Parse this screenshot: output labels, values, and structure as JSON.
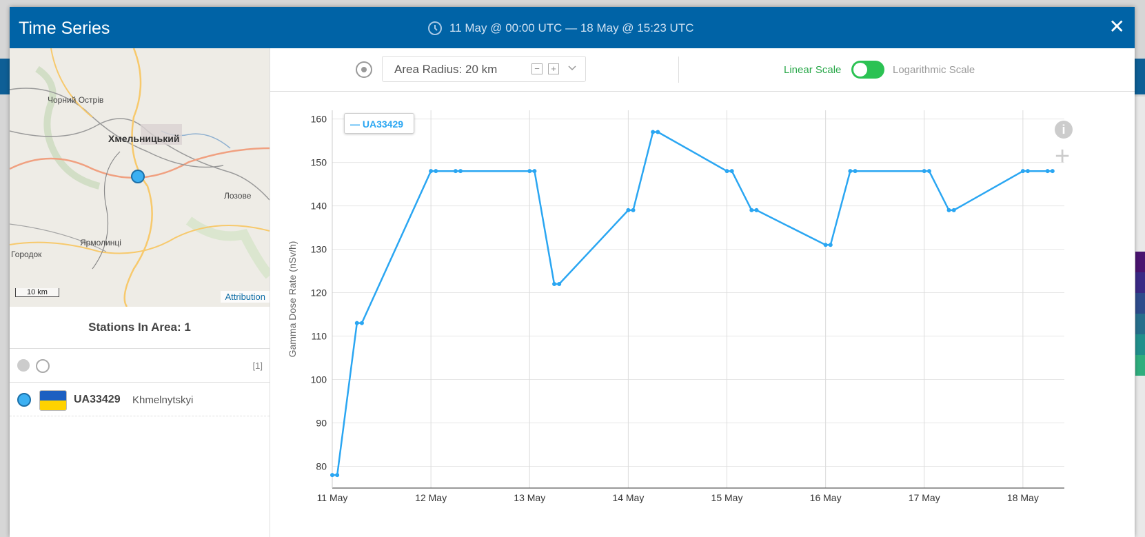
{
  "dialog": {
    "title": "Time Series",
    "range_icon": "clock-icon",
    "range": "11 May @ 00:00 UTC — 18 May @ 15:23 UTC",
    "close_icon": "close-icon",
    "close_label": "✕"
  },
  "map": {
    "labels": {
      "label_1": "Чорний Острів",
      "label_2": "Хмельницький",
      "label_3": "Лозове",
      "label_4": "Ярмолинці",
      "label_5": "Городок"
    },
    "scale": "10 km",
    "attribution": "Attribution"
  },
  "stations": {
    "heading": "Stations In Area: 1",
    "count": "[1]",
    "list": [
      {
        "id": "UA33429",
        "name": "Khmelnytskyi",
        "flag": "ukraine-flag-icon"
      }
    ]
  },
  "toolbar": {
    "target_icon": "target-icon",
    "radius_label": "Area Radius: 20 km",
    "minus_label": "−",
    "plus_label": "+",
    "chevron": "chevron-down-icon",
    "linear_label": "Linear Scale",
    "log_label": "Logarithmic Scale",
    "linear_active": true
  },
  "chart_icons": {
    "info": "info-icon",
    "info_glyph": "i",
    "add": "plus-icon",
    "add_glyph": "+"
  },
  "chart_data": {
    "type": "line",
    "legend": "UA33429",
    "ylabel": "Gamma Dose Rate (nSv/h)",
    "xlabel": "",
    "ylim": [
      75,
      162
    ],
    "yticks": [
      80,
      90,
      100,
      110,
      120,
      130,
      140,
      150,
      160
    ],
    "x_ticks": [
      "11 May",
      "12 May",
      "13 May",
      "14 May",
      "15 May",
      "16 May",
      "17 May",
      "18 May"
    ],
    "xlim": [
      0,
      7.42
    ],
    "series": [
      {
        "name": "UA33429",
        "color": "#2aa6f2",
        "points": [
          [
            0.0,
            78
          ],
          [
            0.05,
            78
          ],
          [
            0.25,
            113
          ],
          [
            0.3,
            113
          ],
          [
            1.0,
            148
          ],
          [
            1.05,
            148
          ],
          [
            1.25,
            148
          ],
          [
            1.3,
            148
          ],
          [
            2.0,
            148
          ],
          [
            2.05,
            148
          ],
          [
            2.25,
            122
          ],
          [
            2.3,
            122
          ],
          [
            3.0,
            139
          ],
          [
            3.05,
            139
          ],
          [
            3.25,
            157
          ],
          [
            3.3,
            157
          ],
          [
            4.0,
            148
          ],
          [
            4.05,
            148
          ],
          [
            4.25,
            139
          ],
          [
            4.3,
            139
          ],
          [
            5.0,
            131
          ],
          [
            5.05,
            131
          ],
          [
            5.25,
            148
          ],
          [
            5.3,
            148
          ],
          [
            6.0,
            148
          ],
          [
            6.05,
            148
          ],
          [
            6.25,
            139
          ],
          [
            6.3,
            139
          ],
          [
            7.0,
            148
          ],
          [
            7.05,
            148
          ],
          [
            7.25,
            148
          ],
          [
            7.3,
            148
          ]
        ]
      }
    ]
  }
}
